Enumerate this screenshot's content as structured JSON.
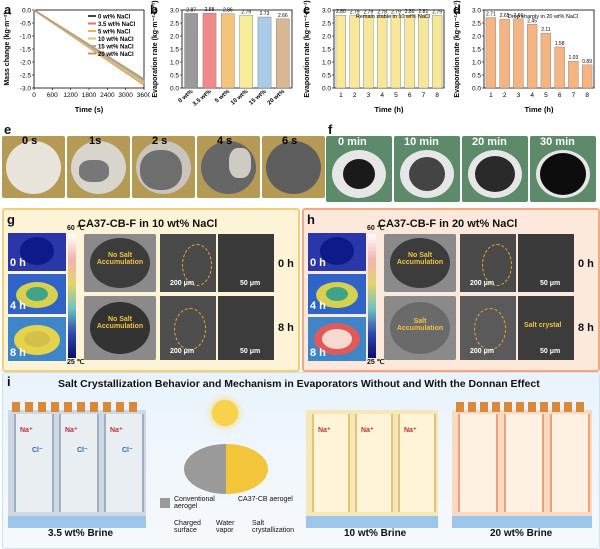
{
  "panels": {
    "a": "a",
    "b": "b",
    "c": "c",
    "d": "d",
    "e": "e",
    "f": "f",
    "g": "g",
    "h": "h",
    "i": "i"
  },
  "chart_data": [
    {
      "id": "a",
      "type": "line",
      "xlabel": "Time (s)",
      "ylabel": "Mass change (kg·m⁻²)",
      "x_ticks": [
        "0",
        "600",
        "1200",
        "1800",
        "2400",
        "3000",
        "3600"
      ],
      "y_ticks": [
        "0.0",
        "-0.5",
        "-1.0",
        "-1.5",
        "-2.0",
        "-2.5",
        "-3.0"
      ],
      "xlim": [
        0,
        3600
      ],
      "ylim": [
        -3.0,
        0.0
      ],
      "series": [
        {
          "name": "0 wt% NaCl",
          "color": "#444444",
          "x": [
            0,
            3600
          ],
          "y": [
            0,
            -2.87
          ]
        },
        {
          "name": "3.5 wt% NaCl",
          "color": "#e6736d",
          "x": [
            0,
            3600
          ],
          "y": [
            0,
            -2.88
          ]
        },
        {
          "name": "5 wt% NaCl",
          "color": "#f0b24a",
          "x": [
            0,
            3600
          ],
          "y": [
            0,
            -2.86
          ]
        },
        {
          "name": "10 wt% NaCl",
          "color": "#d9c76a",
          "x": [
            0,
            3600
          ],
          "y": [
            0,
            -2.79
          ]
        },
        {
          "name": "15 wt% NaCl",
          "color": "#8fb3d9",
          "x": [
            0,
            3600
          ],
          "y": [
            0,
            -2.73
          ]
        },
        {
          "name": "20 wt% NaCl",
          "color": "#c09a6b",
          "x": [
            0,
            3600
          ],
          "y": [
            0,
            -2.66
          ]
        }
      ]
    },
    {
      "id": "b",
      "type": "bar",
      "ylabel": "Evaporation rate (kg·m⁻²·h⁻¹)",
      "categories": [
        "0 wt%",
        "3.5 wt%",
        "5 wt%",
        "10 wt%",
        "15 wt%",
        "20 wt%"
      ],
      "values": [
        2.87,
        2.88,
        2.86,
        2.79,
        2.73,
        2.66
      ],
      "value_labels": [
        "2.87",
        "2.88",
        "2.86",
        "2.79",
        "2.73",
        "2.66"
      ],
      "colors": [
        "#9a9a9a",
        "#f08a8a",
        "#f3c57c",
        "#f7ec9a",
        "#a9cbe8",
        "#d8b894"
      ],
      "y_ticks": [
        "0.0",
        "0.5",
        "1.0",
        "1.5",
        "2.0",
        "2.5",
        "3.0"
      ],
      "ylim": [
        0,
        3.0
      ]
    },
    {
      "id": "c",
      "type": "bar",
      "xlabel": "Time (h)",
      "ylabel": "Evaporation rate (kg·m⁻²·h⁻¹)",
      "annotation": "Remain stable in 10 wt% NaCl",
      "categories": [
        "1",
        "2",
        "3",
        "4",
        "5",
        "6",
        "7",
        "8"
      ],
      "values": [
        2.8,
        2.79,
        2.79,
        2.78,
        2.79,
        2.8,
        2.81,
        2.79
      ],
      "value_labels": [
        "2.80",
        "2.79",
        "2.79",
        "2.78",
        "2.79",
        "2.80",
        "2.81",
        "2.79"
      ],
      "color": "#f7e79a",
      "y_ticks": [
        "0.0",
        "0.5",
        "1.0",
        "1.5",
        "2.0",
        "2.5",
        "3.0"
      ],
      "ylim": [
        0,
        3.0
      ]
    },
    {
      "id": "d",
      "type": "bar",
      "xlabel": "Time (h)",
      "ylabel": "Evaporation rate (kg·m⁻²·h⁻¹)",
      "annotation": "Drop sharply in 20 wt% NaCl",
      "categories": [
        "1",
        "2",
        "3",
        "4",
        "5",
        "6",
        "7",
        "8"
      ],
      "values": [
        2.71,
        2.65,
        2.66,
        2.45,
        2.11,
        1.58,
        1.03,
        0.89
      ],
      "value_labels": [
        "2.71",
        "2.65",
        "2.66",
        "2.45",
        "2.11",
        "1.58",
        "1.03",
        "0.89"
      ],
      "color": "#f5b583",
      "y_ticks": [
        "0.0",
        "0.5",
        "1.0",
        "1.5",
        "2.0",
        "2.5",
        "3.0"
      ],
      "ylim": [
        0,
        3.0
      ]
    }
  ],
  "e": {
    "times": [
      "0 s",
      "1s",
      "2 s",
      "4 s",
      "6 s"
    ]
  },
  "f": {
    "times": [
      "0 min",
      "10 min",
      "20 min",
      "30 min"
    ]
  },
  "g": {
    "title": "CA37-CB-F in 10 wt% NaCl",
    "times": [
      "0 h",
      "4 h",
      "8 h"
    ],
    "scale_top": "60 ℃",
    "scale_bottom": "25 ℃",
    "no_salt_1": "No Salt Accumulation",
    "no_salt_2": "No Salt Accumulation",
    "scale_a": "200 μm",
    "scale_b": "50 μm",
    "scale_c": "200 μm",
    "scale_d": "50 μm",
    "row_times": [
      "0 h",
      "8 h"
    ]
  },
  "h": {
    "title": "CA37-CB-F in 20 wt% NaCl",
    "times": [
      "0 h",
      "4 h",
      "8 h"
    ],
    "scale_top": "60 ℃",
    "scale_bottom": "25 ℃",
    "no_salt": "No Salt Accumulation",
    "salt_acc": "Salt Accumulation",
    "salt_crystal": "Salt crystal",
    "scale_a": "200 μm",
    "scale_b": "50 μm",
    "scale_c": "200 μm",
    "scale_d": "50 μm",
    "row_times": [
      "0 h",
      "8 h"
    ]
  },
  "i": {
    "title": "Salt Crystallization Behavior and Mechanism in Evaporators Without and With the Donnan Effect",
    "na": "Na⁺",
    "cl": "Cl⁻",
    "conventional": "Conventional aerogel",
    "ca37": "CA37-CB aerogel",
    "legend_charged": "Charged surface",
    "legend_vapor": "Water vapor",
    "legend_salt": "Salt crystallization",
    "brine1": "3.5 wt% Brine",
    "brine2": "10 wt% Brine",
    "brine3": "20 wt% Brine"
  }
}
